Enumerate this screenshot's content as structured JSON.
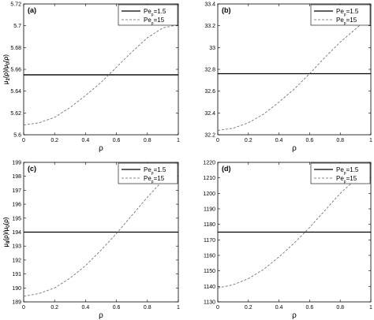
{
  "chart_data": [
    {
      "type": "line",
      "panel_label": "(a)",
      "title": "",
      "xlabel": "ρ",
      "ylabel": "μ1(ρ)/μ0(ρ)",
      "ylabel_main": "μ",
      "ylabel_parts": [
        [
          "1",
          "sub"
        ],
        [
          "(ρ)/μ",
          "main"
        ],
        [
          "0",
          "sub"
        ],
        [
          "(ρ)",
          "main"
        ]
      ],
      "xlim": [
        0,
        1
      ],
      "ylim": [
        5.6,
        5.72
      ],
      "xticks": [
        0,
        0.2,
        0.4,
        0.6,
        0.8,
        1
      ],
      "xtick_labels": [
        "0",
        "0.2",
        "0.4",
        "0.6",
        "0.8",
        "1"
      ],
      "yticks": [
        5.6,
        5.62,
        5.64,
        5.66,
        5.68,
        5.7,
        5.72
      ],
      "ytick_labels": [
        "5.6",
        "5.62",
        "5.64",
        "5.66",
        "5.68",
        "5.7",
        "5.72"
      ],
      "grid": false,
      "legend_position": "top-right",
      "series": [
        {
          "name": "Pe_p=1.5",
          "legend_main": "Pe",
          "legend_sub": "p",
          "legend_value": "=1.5",
          "style": "solid",
          "x": [
            0,
            1
          ],
          "y": [
            5.655,
            5.655
          ]
        },
        {
          "name": "Pe_p=15",
          "legend_main": "Pe",
          "legend_sub": "p",
          "legend_value": "=15",
          "style": "dashed",
          "x": [
            0,
            0.1,
            0.2,
            0.3,
            0.4,
            0.5,
            0.6,
            0.7,
            0.8,
            0.9,
            1.0
          ],
          "y": [
            5.609,
            5.611,
            5.616,
            5.625,
            5.636,
            5.648,
            5.662,
            5.676,
            5.689,
            5.698,
            5.701
          ]
        }
      ]
    },
    {
      "type": "line",
      "panel_label": "(b)",
      "title": "",
      "xlabel": "ρ",
      "ylabel": "μ2(ρ)/μ0(ρ)",
      "ylabel_main": "μ",
      "ylabel_parts": [
        [
          "2",
          "sub"
        ],
        [
          "(ρ)/μ",
          "main"
        ],
        [
          "0",
          "sub"
        ],
        [
          "(ρ)",
          "main"
        ]
      ],
      "xlim": [
        0,
        1
      ],
      "ylim": [
        32.2,
        33.4
      ],
      "xticks": [
        0,
        0.2,
        0.4,
        0.6,
        0.8,
        1
      ],
      "xtick_labels": [
        "0",
        "0.2",
        "0.4",
        "0.6",
        "0.8",
        "1"
      ],
      "yticks": [
        32.2,
        32.4,
        32.6,
        32.8,
        33,
        33.2,
        33.4
      ],
      "ytick_labels": [
        "32.2",
        "32.4",
        "32.6",
        "32.8",
        "33",
        "33.2",
        "33.4"
      ],
      "grid": false,
      "legend_position": "top-right",
      "series": [
        {
          "name": "Pe_p=1.5",
          "legend_main": "Pe",
          "legend_sub": "p",
          "legend_value": "=1.5",
          "style": "solid",
          "x": [
            0,
            1
          ],
          "y": [
            32.76,
            32.76
          ]
        },
        {
          "name": "Pe_p=15",
          "legend_main": "Pe",
          "legend_sub": "p",
          "legend_value": "=15",
          "style": "dashed",
          "x": [
            0,
            0.1,
            0.2,
            0.3,
            0.4,
            0.5,
            0.6,
            0.7,
            0.8,
            0.9,
            1.0
          ],
          "y": [
            32.24,
            32.26,
            32.31,
            32.39,
            32.5,
            32.62,
            32.76,
            32.91,
            33.05,
            33.17,
            33.29
          ]
        }
      ]
    },
    {
      "type": "line",
      "panel_label": "(c)",
      "title": "",
      "xlabel": "ρ",
      "ylabel": "μ3(ρ)/μ0(ρ)",
      "ylabel_main": "μ",
      "ylabel_parts": [
        [
          "3",
          "sub"
        ],
        [
          "(ρ)/μ",
          "main"
        ],
        [
          "0",
          "sub"
        ],
        [
          "(ρ)",
          "main"
        ]
      ],
      "xlim": [
        0,
        1
      ],
      "ylim": [
        189,
        199
      ],
      "xticks": [
        0,
        0.2,
        0.4,
        0.6,
        0.8,
        1
      ],
      "xtick_labels": [
        "0",
        "0.2",
        "0.4",
        "0.6",
        "0.8",
        "1"
      ],
      "yticks": [
        189,
        190,
        191,
        192,
        193,
        194,
        195,
        196,
        197,
        198,
        199
      ],
      "ytick_labels": [
        "189",
        "190",
        "191",
        "192",
        "193",
        "194",
        "195",
        "196",
        "197",
        "198",
        "199"
      ],
      "grid": false,
      "legend_position": "top-right",
      "series": [
        {
          "name": "Pe_p=1.5",
          "legend_main": "Pe",
          "legend_sub": "p",
          "legend_value": "=1.5",
          "style": "solid",
          "x": [
            0,
            1
          ],
          "y": [
            194.0,
            194.0
          ]
        },
        {
          "name": "Pe_p=15",
          "legend_main": "Pe",
          "legend_sub": "p",
          "legend_value": "=15",
          "style": "dashed",
          "x": [
            0,
            0.1,
            0.2,
            0.3,
            0.4,
            0.5,
            0.6,
            0.7,
            0.8,
            0.9,
            1.0
          ],
          "y": [
            189.4,
            189.6,
            190.0,
            190.7,
            191.6,
            192.7,
            193.9,
            195.2,
            196.5,
            197.7,
            198.6
          ]
        }
      ]
    },
    {
      "type": "line",
      "panel_label": "(d)",
      "title": "",
      "xlabel": "ρ",
      "ylabel": "μ4(ρ)/μ0(ρ)",
      "ylabel_main": "μ",
      "ylabel_parts": [
        [
          "4",
          "sub"
        ],
        [
          "(ρ)/μ",
          "main"
        ],
        [
          "0",
          "sub"
        ],
        [
          "(ρ)",
          "main"
        ]
      ],
      "xlim": [
        0,
        1
      ],
      "ylim": [
        1130,
        1220
      ],
      "xticks": [
        0,
        0.2,
        0.4,
        0.6,
        0.8,
        1
      ],
      "xtick_labels": [
        "0",
        "0.2",
        "0.4",
        "0.6",
        "0.8",
        "1"
      ],
      "yticks": [
        1130,
        1140,
        1150,
        1160,
        1170,
        1180,
        1190,
        1200,
        1210,
        1220
      ],
      "ytick_labels": [
        "1130",
        "1140",
        "1150",
        "1160",
        "1170",
        "1180",
        "1190",
        "1200",
        "1210",
        "1220"
      ],
      "grid": false,
      "legend_position": "top-right",
      "series": [
        {
          "name": "Pe_p=1.5",
          "legend_main": "Pe",
          "legend_sub": "p",
          "legend_value": "=1.5",
          "style": "solid",
          "x": [
            0,
            1
          ],
          "y": [
            1175,
            1175
          ]
        },
        {
          "name": "Pe_p=15",
          "legend_main": "Pe",
          "legend_sub": "p",
          "legend_value": "=15",
          "style": "dashed",
          "x": [
            0,
            0.1,
            0.2,
            0.3,
            0.4,
            0.5,
            0.6,
            0.7,
            0.8,
            0.9,
            1.0
          ],
          "y": [
            1139,
            1141,
            1145,
            1151,
            1159,
            1168,
            1178,
            1189,
            1200,
            1209,
            1212
          ]
        }
      ]
    }
  ]
}
